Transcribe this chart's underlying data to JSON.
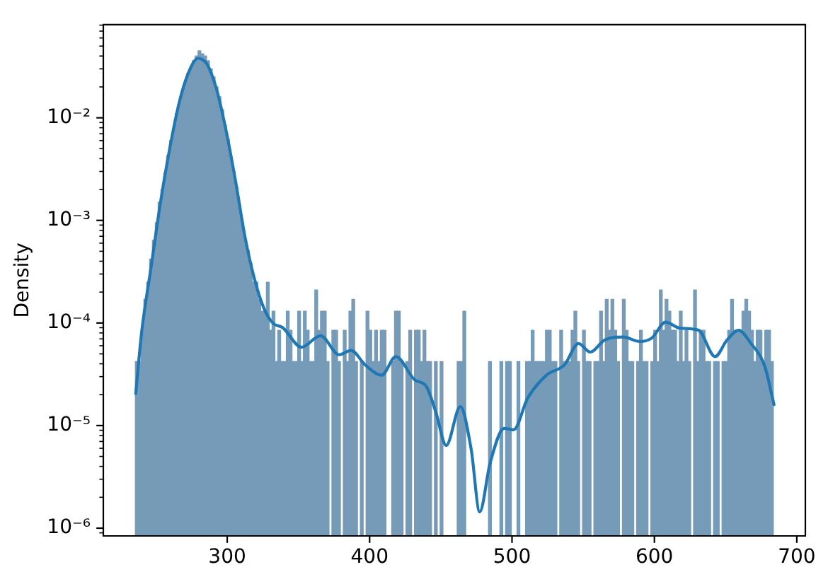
{
  "chart_data": {
    "type": "histogram",
    "ylabel": "Density",
    "log": true,
    "xlim": [
      213,
      706
    ],
    "ylim": [
      8.4e-07,
      0.081
    ],
    "xticks": [
      300,
      400,
      500,
      600,
      700
    ],
    "yticks": [
      {
        "value": 9e-07,
        "label": null
      },
      {
        "value": 1e-06,
        "label": "10⁻⁶"
      },
      {
        "value": 2e-06,
        "label": null
      },
      {
        "value": 3e-06,
        "label": null
      },
      {
        "value": 4e-06,
        "label": null
      },
      {
        "value": 5e-06,
        "label": null
      },
      {
        "value": 6e-06,
        "label": null
      },
      {
        "value": 7e-06,
        "label": null
      },
      {
        "value": 8e-06,
        "label": null
      },
      {
        "value": 9e-06,
        "label": null
      },
      {
        "value": 1e-05,
        "label": "10⁻⁵"
      },
      {
        "value": 2e-05,
        "label": null
      },
      {
        "value": 3e-05,
        "label": null
      },
      {
        "value": 4e-05,
        "label": null
      },
      {
        "value": 5e-05,
        "label": null
      },
      {
        "value": 6e-05,
        "label": null
      },
      {
        "value": 7e-05,
        "label": null
      },
      {
        "value": 8e-05,
        "label": null
      },
      {
        "value": 9e-05,
        "label": null
      },
      {
        "value": 0.0001,
        "label": "10⁻⁴"
      },
      {
        "value": 0.0002,
        "label": null
      },
      {
        "value": 0.0003,
        "label": null
      },
      {
        "value": 0.0004,
        "label": null
      },
      {
        "value": 0.0005,
        "label": null
      },
      {
        "value": 0.0006,
        "label": null
      },
      {
        "value": 0.0007,
        "label": null
      },
      {
        "value": 0.0008,
        "label": null
      },
      {
        "value": 0.0009,
        "label": null
      },
      {
        "value": 0.001,
        "label": "10⁻³"
      },
      {
        "value": 0.002,
        "label": null
      },
      {
        "value": 0.003,
        "label": null
      },
      {
        "value": 0.004,
        "label": null
      },
      {
        "value": 0.005,
        "label": null
      },
      {
        "value": 0.006,
        "label": null
      },
      {
        "value": 0.007,
        "label": null
      },
      {
        "value": 0.008,
        "label": null
      },
      {
        "value": 0.009,
        "label": null
      },
      {
        "value": 0.01,
        "label": "10⁻²"
      },
      {
        "value": 0.02,
        "label": null
      },
      {
        "value": 0.03,
        "label": null
      },
      {
        "value": 0.04,
        "label": null
      },
      {
        "value": 0.05,
        "label": null
      },
      {
        "value": 0.06,
        "label": null
      },
      {
        "value": 0.07,
        "label": null
      },
      {
        "value": 0.08,
        "label": null
      }
    ],
    "bins": [
      235.5,
      237.5,
      239.5,
      241.5,
      243.5,
      245.5,
      247.5,
      249.5,
      251.5,
      253.5,
      255.5,
      257.5,
      259.5,
      261.5,
      263.5,
      265.5,
      267.5,
      269.5,
      271.5,
      273.5,
      275.5,
      277.5,
      279.5,
      281.5,
      283.5,
      285.5,
      287.5,
      289.5,
      291.5,
      293.5,
      295.5,
      297.5,
      299.5,
      301.5,
      303.5,
      305.5,
      307.5,
      309.5,
      311.5,
      313.5,
      315.5,
      317.5,
      319.5,
      321.5,
      323.5,
      325.5,
      327.5,
      329.5,
      331.5,
      333.5,
      335.5,
      337.5,
      339.5,
      341.5,
      343.5,
      345.5,
      347.5,
      349.5,
      351.5,
      353.5,
      355.5,
      357.5,
      359.5,
      361.5,
      363.5,
      365.5,
      367.5,
      369.5,
      371.5,
      373.5,
      375.5,
      377.5,
      379.5,
      381.5,
      383.5,
      385.5,
      387.5,
      389.5,
      391.5,
      393.5,
      395.5,
      397.5,
      399.5,
      401.5,
      403.5,
      405.5,
      407.5,
      409.5,
      411.5,
      413.5,
      415.5,
      417.5,
      419.5,
      421.5,
      423.5,
      425.5,
      427.5,
      429.5,
      431.5,
      433.5,
      435.5,
      437.5,
      439.5,
      441.5,
      443.5,
      445.5,
      447.5,
      449.5,
      451.5,
      453.5,
      455.5,
      457.5,
      459.5,
      461.5,
      463.5,
      465.5,
      467.5,
      469.5,
      471.5,
      473.5,
      475.5,
      477.5,
      479.5,
      481.5,
      483.5,
      485.5,
      487.5,
      489.5,
      491.5,
      493.5,
      495.5,
      497.5,
      499.5,
      501.5,
      503.5,
      505.5,
      507.5,
      509.5,
      511.5,
      513.5,
      515.5,
      517.5,
      519.5,
      521.5,
      523.5,
      525.5,
      527.5,
      529.5,
      531.5,
      533.5,
      535.5,
      537.5,
      539.5,
      541.5,
      543.5,
      545.5,
      547.5,
      549.5,
      551.5,
      553.5,
      555.5,
      557.5,
      559.5,
      561.5,
      563.5,
      565.5,
      567.5,
      569.5,
      571.5,
      573.5,
      575.5,
      577.5,
      579.5,
      581.5,
      583.5,
      585.5,
      587.5,
      589.5,
      591.5,
      593.5,
      595.5,
      597.5,
      599.5,
      601.5,
      603.5,
      605.5,
      607.5,
      609.5,
      611.5,
      613.5,
      615.5,
      617.5,
      619.5,
      621.5,
      623.5,
      625.5,
      627.5,
      629.5,
      631.5,
      633.5,
      635.5,
      637.5,
      639.5,
      641.5,
      643.5,
      645.5,
      647.5,
      649.5,
      651.5,
      653.5,
      655.5,
      657.5,
      659.5,
      661.5,
      663.5,
      665.5,
      667.5,
      669.5,
      671.5,
      673.5,
      675.5,
      677.5,
      679.5,
      681.5,
      683.5
    ],
    "series": [
      {
        "color": "#769bb8",
        "values": [
          4.2e-05,
          4.2e-05,
          8.5e-05,
          0.00017,
          0.00025,
          0.00042,
          0.00064,
          0.00095,
          0.0015,
          0.002,
          0.0029,
          0.0043,
          0.006,
          0.0078,
          0.011,
          0.014,
          0.018,
          0.022,
          0.027,
          0.031,
          0.036,
          0.04,
          0.045,
          0.042,
          0.04,
          0.036,
          0.03,
          0.025,
          0.02,
          0.016,
          0.012,
          0.0085,
          0.0062,
          0.0042,
          0.003,
          0.0021,
          0.0014,
          0.00095,
          0.00064,
          0.00051,
          0.00038,
          0.00025,
          0.00025,
          0.00017,
          0.00013,
          0.00013,
          0.00025,
          8.5e-05,
          0.00013,
          4.2e-05,
          8.5e-05,
          4.2e-05,
          4.2e-05,
          0.00013,
          8.5e-05,
          4.2e-05,
          4.2e-05,
          0.00013,
          4.2e-05,
          0.00013,
          8.5e-05,
          4.2e-05,
          4.2e-05,
          0.00021,
          8.5e-05,
          0.00013,
          0.00013,
          4.2e-05,
          null,
          8.5e-05,
          8.5e-05,
          4.2e-05,
          null,
          8.5e-05,
          4.2e-05,
          0.00013,
          0.00017,
          4.2e-05,
          null,
          4.2e-05,
          null,
          0.00013,
          8.5e-05,
          4.2e-05,
          8.5e-05,
          4.2e-05,
          8.5e-05,
          8.5e-05,
          null,
          null,
          4.2e-05,
          0.00013,
          0.00013,
          4.2e-05,
          null,
          4.2e-05,
          8.5e-05,
          null,
          8.5e-05,
          8.5e-05,
          4.2e-05,
          8.5e-05,
          4.2e-05,
          4.2e-05,
          null,
          4.2e-05,
          null,
          4.2e-05,
          null,
          null,
          null,
          null,
          null,
          4.2e-05,
          4.2e-05,
          0.00013,
          null,
          null,
          null,
          null,
          null,
          null,
          null,
          null,
          4.2e-05,
          null,
          null,
          null,
          4.2e-05,
          null,
          4.2e-05,
          4.2e-05,
          null,
          null,
          4.2e-05,
          null,
          null,
          4.2e-05,
          4.2e-05,
          8.5e-05,
          4.2e-05,
          4.2e-05,
          4.2e-05,
          4.2e-05,
          8.5e-05,
          8.5e-05,
          4.2e-05,
          4.2e-05,
          null,
          8.5e-05,
          4.2e-05,
          4.2e-05,
          4.2e-05,
          8.5e-05,
          0.00013,
          4.2e-05,
          null,
          8.5e-05,
          4.2e-05,
          4.2e-05,
          null,
          4.2e-05,
          4.2e-05,
          0.00013,
          4.2e-05,
          0.00017,
          8.5e-05,
          0.00017,
          8.5e-05,
          4.2e-05,
          null,
          0.00017,
          8.5e-05,
          4.2e-05,
          4.2e-05,
          null,
          4.2e-05,
          8.5e-05,
          4.2e-05,
          4.2e-05,
          null,
          4.2e-05,
          8.5e-05,
          4.2e-05,
          0.00021,
          8.5e-05,
          0.00017,
          0.00013,
          8.5e-05,
          8.5e-05,
          4.2e-05,
          0.00013,
          4.2e-05,
          8.5e-05,
          4.2e-05,
          null,
          0.00021,
          4.2e-05,
          8.5e-05,
          8.5e-05,
          4.2e-05,
          4.2e-05,
          null,
          4.2e-05,
          4.2e-05,
          null,
          4.2e-05,
          4.2e-05,
          8.5e-05,
          0.00017,
          8.5e-05,
          8.5e-05,
          8.5e-05,
          0.00013,
          0.00017,
          0.00013,
          8.5e-05,
          4.2e-05,
          8.5e-05,
          8.5e-05,
          4.2e-05,
          8.5e-05,
          8.5e-05,
          4.2e-05
        ]
      },
      {
        "type": "line",
        "color": "#1f77b4",
        "x": [
          235.8,
          239.8,
          246.4,
          253,
          259.6,
          266.3,
          272.9,
          279.5,
          282.5,
          286.1,
          292.7,
          299.3,
          305.9,
          312.5,
          319.1,
          325.7,
          332,
          339,
          352.2,
          365.5,
          378.7,
          387,
          396.9,
          408.5,
          418.4,
          431.6,
          439.9,
          446.5,
          453.8,
          463.7,
          471.3,
          477.3,
          484.6,
          494.5,
          501.1,
          511,
          524.2,
          536.8,
          546.7,
          555,
          564.9,
          578.1,
          589.7,
          598,
          607.9,
          617.8,
          631,
          642.6,
          650.9,
          659.2,
          667.5,
          677.4,
          684
        ],
        "values": [
          2.05e-05,
          7.9e-05,
          0.00034,
          0.00145,
          0.005,
          0.0141,
          0.0277,
          0.038,
          0.037,
          0.033,
          0.0186,
          0.0074,
          0.0024,
          0.00069,
          0.00027,
          0.00014,
          0.0001,
          9e-05,
          5.8e-05,
          7.5e-05,
          4.9e-05,
          5.4e-05,
          3.9e-05,
          3.1e-05,
          4.7e-05,
          2.8e-05,
          2.4e-05,
          1.35e-05,
          6.4e-06,
          1.53e-05,
          5.9e-06,
          1.44e-06,
          4.3e-06,
          9.4e-06,
          9.1e-06,
          1.85e-05,
          3.1e-05,
          3.9e-05,
          6.3e-05,
          5.2e-05,
          6.8e-05,
          7.3e-05,
          6.6e-05,
          7.1e-05,
          0.000102,
          8.9e-05,
          8.5e-05,
          4.7e-05,
          6.8e-05,
          8.5e-05,
          6.4e-05,
          3.8e-05,
          1.6e-05
        ]
      }
    ]
  }
}
